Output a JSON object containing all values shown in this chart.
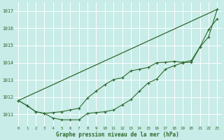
{
  "xlabel": "Graphe pression niveau de la mer (hPa)",
  "xlim": [
    -0.5,
    23.5
  ],
  "ylim": [
    1010.3,
    1017.5
  ],
  "yticks": [
    1011,
    1012,
    1013,
    1014,
    1015,
    1016,
    1017
  ],
  "xticks": [
    0,
    1,
    2,
    3,
    4,
    5,
    6,
    7,
    8,
    9,
    10,
    11,
    12,
    13,
    14,
    15,
    16,
    17,
    18,
    19,
    20,
    21,
    22,
    23
  ],
  "bg_color": "#c8ece8",
  "grid_color": "#ffffff",
  "line_color": "#2d6a2d",
  "line1_x": [
    0,
    1,
    2,
    3,
    4,
    5,
    6,
    7,
    8,
    9,
    10,
    11,
    12,
    13,
    14,
    15,
    16,
    17,
    18,
    19,
    20,
    21,
    22,
    23
  ],
  "line1_y": [
    1011.8,
    1011.5,
    1011.15,
    1011.05,
    1010.78,
    1010.68,
    1010.68,
    1010.68,
    1011.05,
    1011.1,
    1011.15,
    1011.25,
    1011.55,
    1011.85,
    1012.35,
    1012.82,
    1013.05,
    1013.62,
    1013.82,
    1014.0,
    1014.02,
    1014.9,
    1015.5,
    1017.1
  ],
  "line2_x": [
    0,
    1,
    2,
    3,
    4,
    5,
    6,
    7,
    8,
    9,
    10,
    11,
    12,
    13,
    14,
    15,
    16,
    17,
    18,
    19,
    20,
    21,
    22,
    23
  ],
  "line2_y": [
    1011.8,
    1011.5,
    1011.15,
    1011.05,
    1011.1,
    1011.15,
    1011.25,
    1011.35,
    1011.95,
    1012.35,
    1012.72,
    1013.02,
    1013.12,
    1013.52,
    1013.62,
    1013.72,
    1014.0,
    1014.02,
    1014.08,
    1014.02,
    1014.12,
    1014.92,
    1015.92,
    1016.55
  ],
  "line3_x": [
    0,
    23
  ],
  "line3_y": [
    1011.8,
    1017.1
  ]
}
